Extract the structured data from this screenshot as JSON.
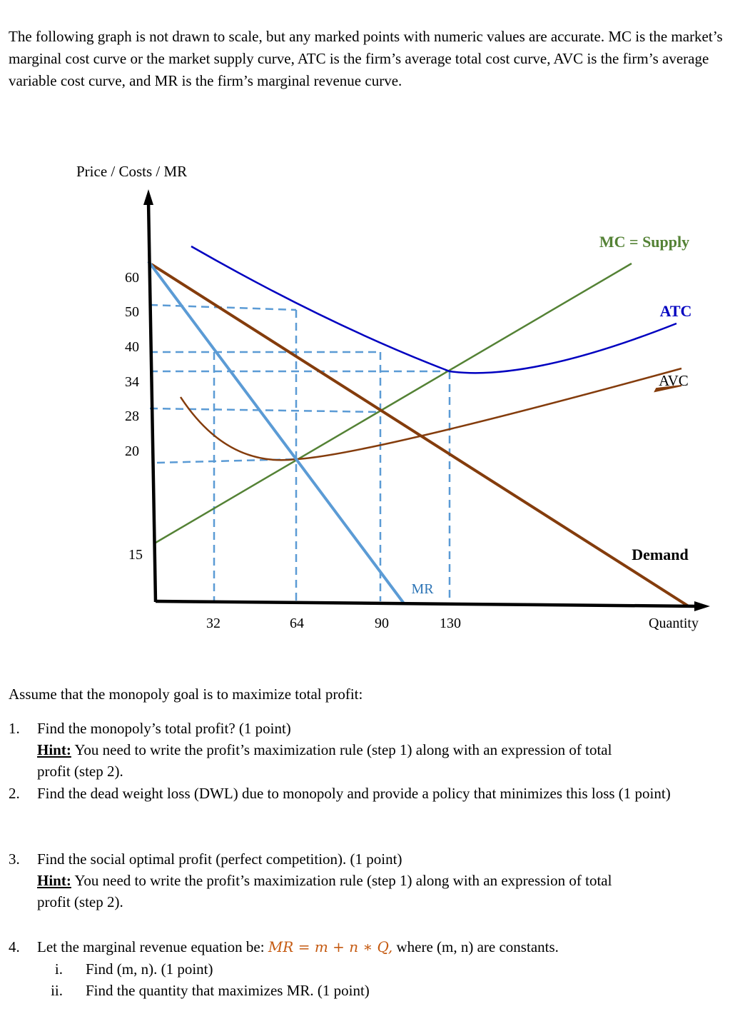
{
  "intro": "The following graph is not drawn to scale, but any marked points with numeric values are accurate. MC is the market’s marginal cost curve or the market supply curve, ATC is the firm’s average total cost curve, AVC is the firm’s average variable cost curve, and MR is the firm’s marginal revenue curve.",
  "chart_data": {
    "type": "line",
    "title": "",
    "ylabel": "Price / Costs / MR",
    "xlabel": "Quantity",
    "y_ticks": [
      "60",
      "50",
      "40",
      "34",
      "28",
      "20",
      "15"
    ],
    "x_ticks": [
      "32",
      "64",
      "90",
      "130"
    ],
    "curve_labels": {
      "mc": "MC = Supply",
      "atc": "ATC",
      "avc": "AVC",
      "demand": "Demand",
      "mr": "MR"
    },
    "marked_points": [
      {
        "curve": "ATC",
        "x": 64,
        "y": 50
      },
      {
        "curve": "Demand",
        "x": 64,
        "y": 40
      },
      {
        "curve": "ATC min / MC",
        "x": 130,
        "y": 34
      },
      {
        "curve": "MC / Demand",
        "x": 90,
        "y": 28
      },
      {
        "curve": "MR / MC / AVC",
        "x": 64,
        "y": 20
      },
      {
        "curve": "MC intercept",
        "x": 0,
        "y": 15
      },
      {
        "curve": "Demand intercept",
        "x": 0,
        "y": 60
      }
    ],
    "not_to_scale": true
  },
  "assume": "Assume that the monopoly goal is to maximize total profit:",
  "hint_label": "Hint:",
  "questions": {
    "q1": {
      "num": "1.",
      "text": "Find the monopoly’s total profit? (1 point)",
      "hint": "You need to write the profit’s maximization rule (step 1) along with an expression of total",
      "hint_cont": "profit (step 2)."
    },
    "q2": {
      "num": "2.",
      "text": "Find the dead weight loss (DWL) due to monopoly and provide a policy that minimizes this loss (1 point)"
    },
    "q3": {
      "num": "3.",
      "text": "Find the social optimal profit (perfect competition). (1 point)",
      "hint": "You need to write the profit’s maximization rule (step 1) along with an expression of total",
      "hint_cont": "profit (step 2)."
    },
    "q4": {
      "num": "4.",
      "text_before": "Let the marginal revenue equation be: ",
      "equation": "MR = m + n ∗ Q,",
      "text_after": " where (m, n) are constants.",
      "subs": [
        {
          "num": "i.",
          "text": "Find (m, n). (1 point)"
        },
        {
          "num": "ii.",
          "text": "Find the quantity that maximizes MR. (1 point)"
        }
      ]
    }
  },
  "colors": {
    "mc": "#548235",
    "atc": "#0000c0",
    "avc": "#843c0c",
    "demand": "#843c0c",
    "mr": "#5b9bd5",
    "dashed": "#5b9bd5",
    "axis": "#000000"
  }
}
